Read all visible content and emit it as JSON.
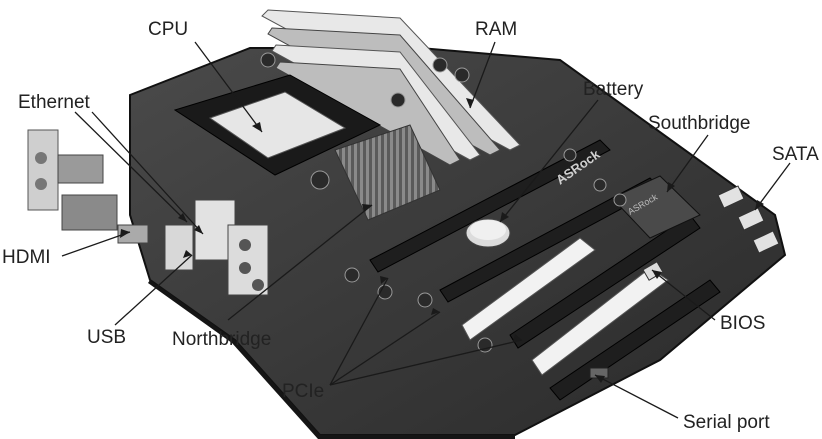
{
  "labels": {
    "cpu": "CPU",
    "ram": "RAM",
    "ethernet": "Ethernet",
    "battery": "Battery",
    "southbridge": "Southbridge",
    "sata": "SATA",
    "hdmi": "HDMI",
    "usb": "USB",
    "northbridge": "Northbridge",
    "pcie": "PCIe",
    "bios": "BIOS",
    "serial_port": "Serial port"
  },
  "board_print": {
    "brand": "ASRock",
    "southbridge_chip": "ASRock"
  },
  "colors": {
    "board": "#3a3a3a",
    "board_dark": "#232323",
    "metal": "#c8c8c8",
    "slot_white": "#f2f2f2",
    "line": "#1a1a1a"
  }
}
